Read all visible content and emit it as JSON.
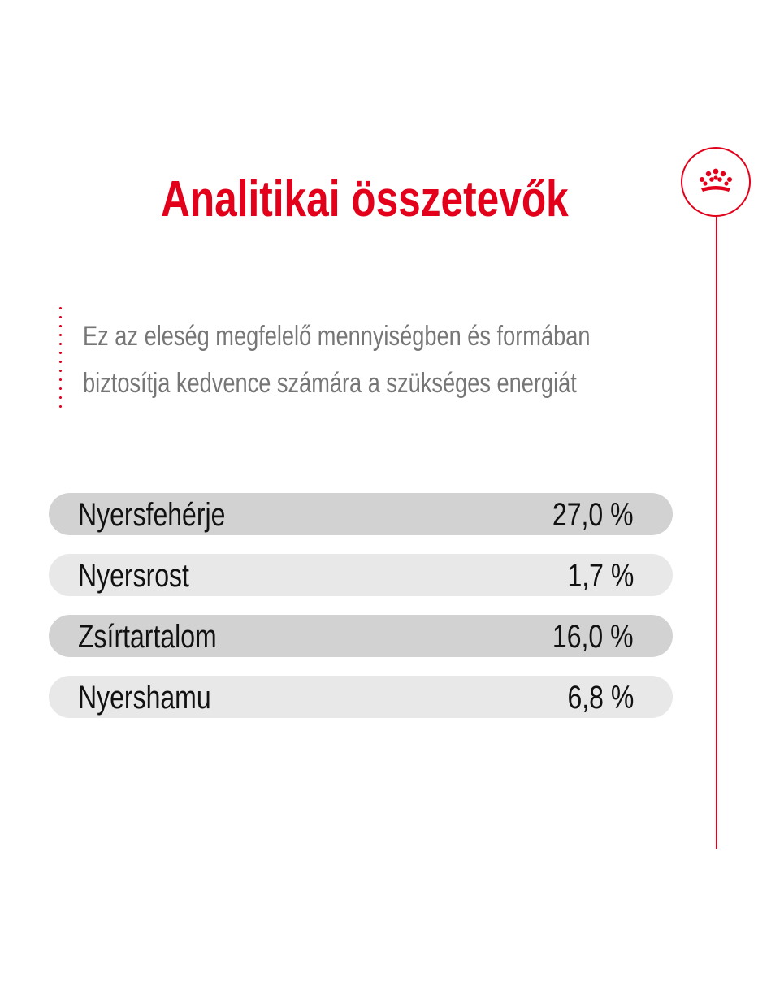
{
  "title": "Analitikai összetevők",
  "intro": "Ez az eleség megfelelő mennyiségben és formában biztosítja kedvence számára a szükséges energiát",
  "brand": {
    "icon": "crown-icon",
    "accent_color": "#e2001a"
  },
  "nutrients": [
    {
      "label": "Nyersfehérje",
      "value": "27,0 %"
    },
    {
      "label": "Nyersrost",
      "value": "1,7 %"
    },
    {
      "label": "Zsírtartalom",
      "value": "16,0 %"
    },
    {
      "label": "Nyershamu",
      "value": "6,8 %"
    }
  ]
}
